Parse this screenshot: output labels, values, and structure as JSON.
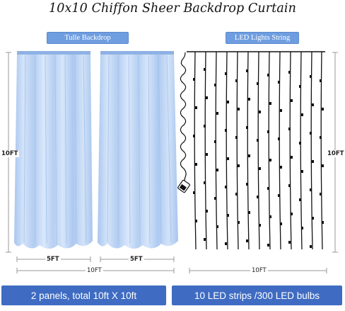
{
  "title": "10x10 Chiffon Sheer Backdrop Curtain",
  "labels": {
    "tulle": "Tulle Backdrop",
    "led": "LED Lights String"
  },
  "dimensions": {
    "left_height": "10FT",
    "right_height": "10FT",
    "panel1_width": "5FT",
    "panel2_width": "5FT",
    "curtain_total_width": "10FT",
    "led_total_width": "10FT"
  },
  "footer": {
    "left": "2 panels, total 10ft X 10ft",
    "right": "10 LED strips /300 LED bulbs"
  },
  "colors": {
    "curtain": "#c3d8f5",
    "pill": "#6f9ee0",
    "footer": "#3f6cc2"
  }
}
